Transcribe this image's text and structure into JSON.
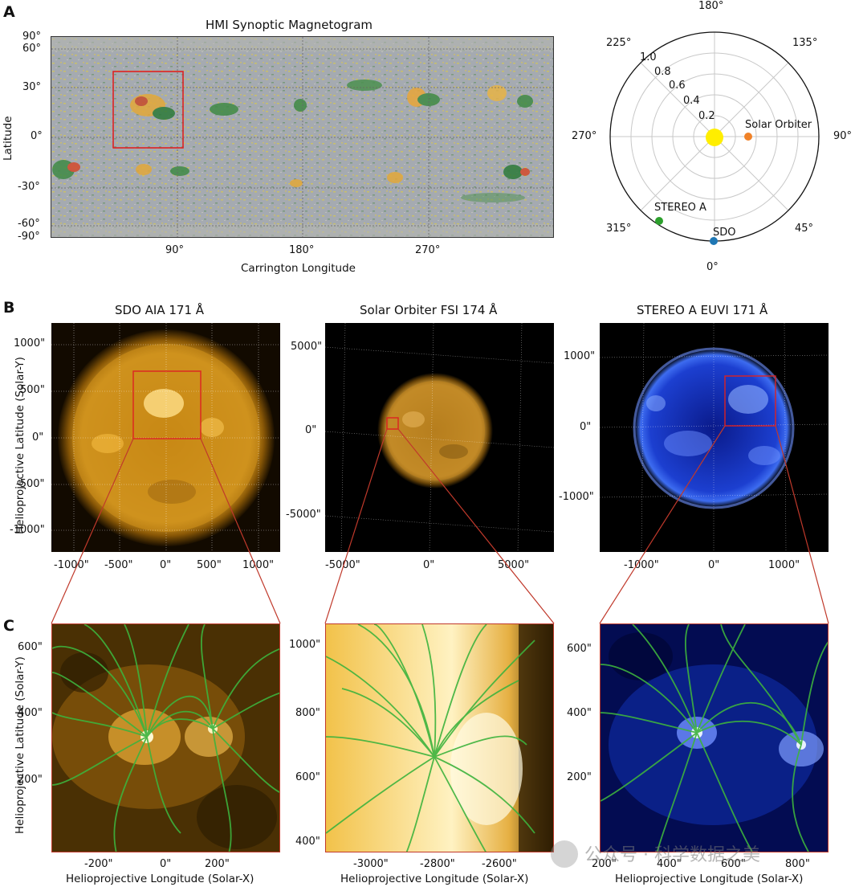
{
  "panel_letters": {
    "a": "A",
    "b": "B",
    "c": "C"
  },
  "magnetogram": {
    "title": "HMI Synoptic Magnetogram",
    "ylabel": "Latitude",
    "xlabel": "Carrington Longitude",
    "y_ticks": [
      "90°",
      "60°",
      "30°",
      "0°",
      "-30°",
      "-60°",
      "-90°"
    ],
    "x_ticks": [
      "90°",
      "180°",
      "270°"
    ]
  },
  "polar": {
    "angle_labels": [
      "180°",
      "135°",
      "90°",
      "45°",
      "0°",
      "315°",
      "270°",
      "225°"
    ],
    "radial_labels": [
      "0.2",
      "0.4",
      "0.6",
      "0.8",
      "1.0"
    ],
    "spacecraft": [
      {
        "name": "Solar Orbiter",
        "color": "#f08228"
      },
      {
        "name": "STEREO A",
        "color": "#2ca02c"
      },
      {
        "name": "SDO",
        "color": "#1f77b4"
      }
    ],
    "sun_color": "#ffee00"
  },
  "row_b": [
    {
      "title": "SDO AIA 171 Å",
      "y_ticks": [
        "1000\"",
        "500\"",
        "0\"",
        "-500\"",
        "-1000\""
      ],
      "x_ticks": [
        "-1000\"",
        "-500\"",
        "0\"",
        "500\"",
        "1000\""
      ]
    },
    {
      "title": "Solar Orbiter FSI 174 Å",
      "y_ticks": [
        "5000\"",
        "0\"",
        "-5000\""
      ],
      "x_ticks": [
        "-5000\"",
        "0\"",
        "5000\""
      ]
    },
    {
      "title": "STEREO A EUVI 171 Å",
      "y_ticks": [
        "1000\"",
        "0\"",
        "-1000\""
      ],
      "x_ticks": [
        "-1000\"",
        "0\"",
        "1000\""
      ]
    }
  ],
  "row_c": [
    {
      "y_ticks": [
        "600\"",
        "400\"",
        "200\""
      ],
      "x_ticks": [
        "-200\"",
        "0\"",
        "200\""
      ]
    },
    {
      "y_ticks": [
        "1000\"",
        "800\"",
        "600\"",
        "400\""
      ],
      "x_ticks": [
        "-3000\"",
        "-2800\"",
        "-2600\""
      ]
    },
    {
      "y_ticks": [
        "600\"",
        "400\"",
        "200\""
      ],
      "x_ticks": [
        "200\"",
        "400\"",
        "600\"",
        "800\""
      ]
    }
  ],
  "common": {
    "helio_y": "Helioprojective Latitude (Solar-Y)",
    "helio_x": "Helioprojective Longitude (Solar-X)"
  },
  "watermark": "公众号 · 科学数据之美"
}
